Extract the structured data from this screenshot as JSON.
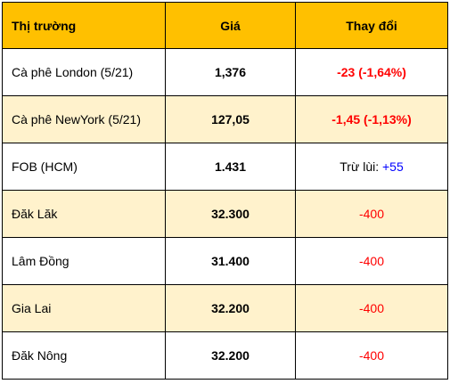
{
  "table": {
    "headers": {
      "market": "Thị trường",
      "price": "Giá",
      "change": "Thay đổi"
    },
    "rows": [
      {
        "market": "Cà phê London (5/21)",
        "price": "1,376",
        "change_prefix": "",
        "change": "-23 (-1,64%)"
      },
      {
        "market": "Cà phê NewYork (5/21)",
        "price": "127,05",
        "change_prefix": "",
        "change": "-1,45 (-1,13%)"
      },
      {
        "market": "FOB (HCM)",
        "price": "1.431",
        "change_prefix": "Trừ lùi: ",
        "change": "+55"
      },
      {
        "market": "Đăk Lăk",
        "price": "32.300",
        "change_prefix": "",
        "change": "-400"
      },
      {
        "market": "Lâm Đồng",
        "price": "31.400",
        "change_prefix": "",
        "change": "-400"
      },
      {
        "market": "Gia Lai",
        "price": "32.200",
        "change_prefix": "",
        "change": "-400"
      },
      {
        "market": "Đăk Nông",
        "price": "32.200",
        "change_prefix": "",
        "change": "-400"
      }
    ]
  },
  "colors": {
    "header_background": "#ffc000",
    "alternate_row_background": "#fff2cc",
    "negative_change": "#ff0000",
    "positive_change": "#0000ff"
  }
}
